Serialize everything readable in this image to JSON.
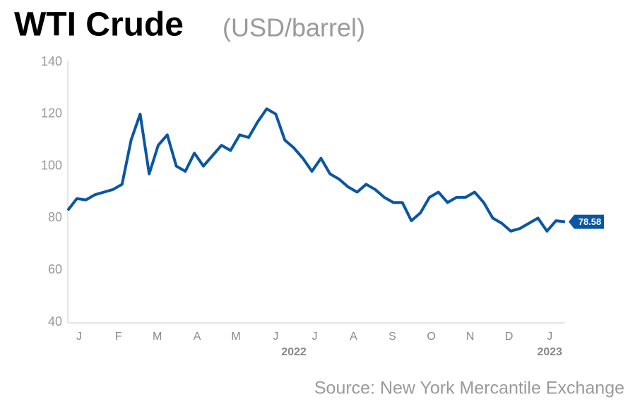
{
  "chart_data": {
    "type": "line",
    "title": "WTI Crude",
    "subtitle": "(USD/barrel)",
    "source": "Source: New York Mercantile Exchange",
    "x": [
      0,
      1,
      2,
      3,
      4,
      5,
      6,
      7,
      8,
      9,
      10,
      11,
      12,
      13,
      14,
      15,
      16,
      17,
      18,
      19,
      20,
      21,
      22,
      23,
      24,
      25,
      26,
      27,
      28,
      29,
      30,
      31,
      32,
      33,
      34,
      35,
      36,
      37,
      38,
      39,
      40,
      41,
      42,
      43,
      44,
      45,
      46,
      47,
      48,
      49,
      50,
      51,
      52,
      53,
      54,
      55
    ],
    "values": [
      83,
      87.5,
      87,
      89,
      90,
      91,
      93,
      110,
      120,
      97,
      108,
      112,
      100,
      98,
      105,
      100,
      104,
      108,
      106,
      112,
      111,
      117,
      122,
      120,
      110,
      107,
      103,
      98,
      103,
      97,
      95,
      92,
      90,
      93,
      91,
      88,
      86,
      86,
      79,
      82,
      88,
      90,
      86,
      88,
      88,
      90,
      86,
      80,
      78,
      75,
      76,
      78,
      80,
      75,
      79,
      78.58
    ],
    "color": "#0a56a3",
    "last_value_label": "78.58",
    "xlim": [
      0,
      55
    ],
    "xticks": [
      {
        "value": 1.25,
        "label": "J"
      },
      {
        "value": 5.6,
        "label": "F"
      },
      {
        "value": 9.9,
        "label": "M"
      },
      {
        "value": 14.3,
        "label": "A"
      },
      {
        "value": 18.6,
        "label": "M"
      },
      {
        "value": 23,
        "label": "J"
      },
      {
        "value": 27.3,
        "label": "J"
      },
      {
        "value": 31.6,
        "label": "A"
      },
      {
        "value": 35.9,
        "label": "S"
      },
      {
        "value": 40.2,
        "label": "O"
      },
      {
        "value": 44.5,
        "label": "N"
      },
      {
        "value": 48.8,
        "label": "D"
      },
      {
        "value": 53.3,
        "label": "J"
      }
    ],
    "year_ticks": [
      {
        "value": 25,
        "label": "2022"
      },
      {
        "value": 53.3,
        "label": "2023"
      }
    ],
    "ylim": [
      40,
      140
    ],
    "yticks": [
      40,
      60,
      80,
      100,
      120,
      140
    ],
    "grid": false
  }
}
